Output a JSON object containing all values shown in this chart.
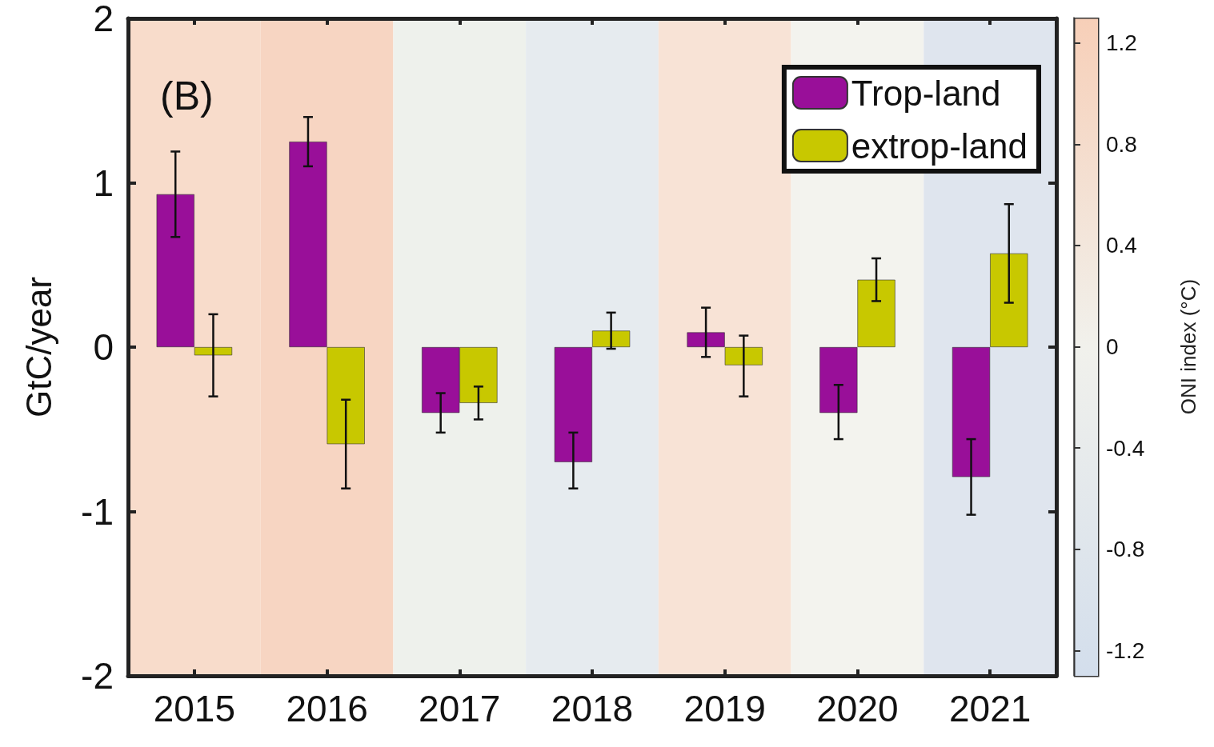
{
  "chart_data": {
    "type": "bar",
    "ylabel": "GtC/year",
    "clabel": "ONI index (°C)",
    "clim": [
      -1.3,
      1.3
    ],
    "cticks": [
      -1.2,
      -0.8,
      -0.4,
      0,
      0.4,
      0.8,
      1.2
    ],
    "categories": [
      "2015",
      "2016",
      "2017",
      "2018",
      "2019",
      "2020",
      "2021"
    ],
    "series": [
      {
        "name": "Trop-land",
        "color": "#990f99",
        "values": [
          0.93,
          1.25,
          -0.4,
          -0.7,
          0.09,
          -0.4,
          -0.79
        ],
        "errors": [
          [
            0.67,
            1.19
          ],
          [
            1.1,
            1.4
          ],
          [
            -0.52,
            -0.28
          ],
          [
            -0.86,
            -0.52
          ],
          [
            -0.06,
            0.24
          ],
          [
            -0.56,
            -0.23
          ],
          [
            -1.02,
            -0.56
          ]
        ]
      },
      {
        "name": "extrop-land",
        "color": "#c8c800",
        "values": [
          -0.05,
          -0.59,
          -0.34,
          0.1,
          -0.11,
          0.41,
          0.57
        ],
        "errors": [
          [
            -0.3,
            0.2
          ],
          [
            -0.86,
            -0.32
          ],
          [
            -0.44,
            -0.24
          ],
          [
            -0.01,
            0.21
          ],
          [
            -0.3,
            0.07
          ],
          [
            0.28,
            0.54
          ],
          [
            0.27,
            0.87
          ]
        ]
      }
    ],
    "ylim": [
      -2,
      2
    ],
    "yticks": [
      -2,
      -1,
      0,
      1,
      2
    ],
    "grid": false,
    "legend": "top right",
    "bands": [
      {
        "axis": "x",
        "from": "2015",
        "to": "2015",
        "color": "#f8dccb"
      },
      {
        "axis": "x",
        "from": "2016",
        "to": "2016",
        "color": "#f7d5c2"
      },
      {
        "axis": "x",
        "from": "2017",
        "to": "2017",
        "color": "#eef1ec"
      },
      {
        "axis": "x",
        "from": "2018",
        "to": "2018",
        "color": "#e6ebef"
      },
      {
        "axis": "x",
        "from": "2019",
        "to": "2019",
        "color": "#f8e3d6"
      },
      {
        "axis": "x",
        "from": "2020",
        "to": "2020",
        "color": "#f3f3ee"
      },
      {
        "axis": "x",
        "from": "2021",
        "to": "2021",
        "color": "#dfe5ee"
      }
    ],
    "annotations": [
      "(B)"
    ]
  }
}
